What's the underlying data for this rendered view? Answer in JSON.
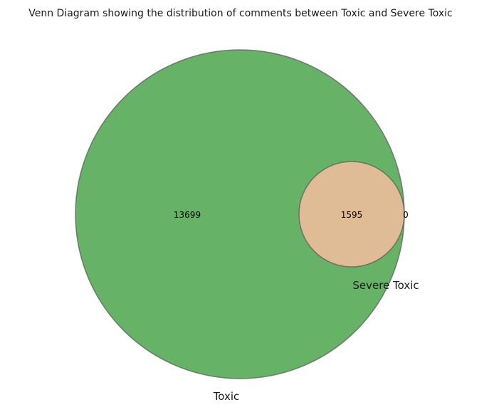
{
  "title": "Venn Diagram showing the distribution of comments between Toxic and Severe Toxic",
  "chart_data": {
    "type": "venn",
    "sets": [
      {
        "name": "Toxic",
        "color": "#66b266"
      },
      {
        "name": "Severe Toxic",
        "color": "#e0bc96"
      }
    ],
    "regions": {
      "toxic_only": "13699",
      "both": "1595",
      "severe_toxic_only": "0"
    },
    "edge_color": "#555555"
  }
}
